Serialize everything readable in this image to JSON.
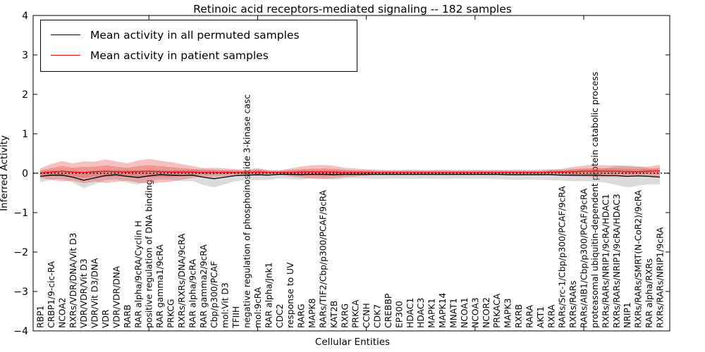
{
  "title": "Retinoic acid receptors-mediated signaling -- 182 samples",
  "legend": {
    "items": [
      {
        "label": "Mean activity in all permuted samples",
        "color": "#000000"
      },
      {
        "label": "Mean activity in patient samples",
        "color": "#ee1111"
      }
    ]
  },
  "chart_data": {
    "type": "line",
    "title": "Retinoic acid receptors-mediated signaling -- 182 samples",
    "xlabel": "Cellular Entities",
    "ylabel": "Inferred Activity",
    "ylim": [
      -4,
      4
    ],
    "yticks": [
      4,
      3,
      2,
      1,
      0,
      -1,
      -2,
      -3,
      -4
    ],
    "yticklabels": [
      "4",
      "3",
      "2",
      "1",
      "0",
      "−1",
      "−2",
      "−3",
      "−4"
    ],
    "grid": false,
    "legend_position": "upper left",
    "zero_line": {
      "style": "dotted",
      "color": "#000000",
      "y": 0
    },
    "categories": [
      "RBP1",
      "CRBP1/9-cic-RA",
      "NCOA2",
      "RXRs/VDR/DNA/Vit D3",
      "VDR/VDR/Vit D3",
      "VDR/Vit D3/DNA",
      "VDR",
      "VDR/VDR/DNA",
      "RARB",
      "RAR alpha/9cRA/Cyclin H",
      "positive regulation of DNA binding",
      "RAR gamma1/9cRA",
      "PRKCG",
      "RXRs/RXRs/DNA/9cRA",
      "RAR alpha/9cRA",
      "RAR gamma2/9cRA",
      "Cbp/p300/PCAF",
      "mol:Vit D3",
      "TFIIH",
      "negative regulation of phosphoinositide 3-kinase casc",
      "mol:9cRA",
      "RAR alpha/Jnk1",
      "CDC2",
      "response to UV",
      "RARG",
      "MAPK8",
      "RARs/TIF2/Cbp/p300/PCAF/9cRA",
      "KAT2B",
      "RXRG",
      "PRKCA",
      "CCNH",
      "CDK7",
      "CREBBP",
      "EP300",
      "HDAC1",
      "HDAC3",
      "MAPK1",
      "MAPK14",
      "MNAT1",
      "NCOA1",
      "NCOA3",
      "NCOR2",
      "PRKACA",
      "MAPK3",
      "RXRB",
      "RARA",
      "AKT1",
      "RXRA",
      "RARs/Src-1/Cbp/p300/PCAF/9cRA",
      "RXRs/RARs",
      "RARs/AIB1/Cbp/p300/PCAF/9cRA",
      "proteasomal ubiquitin-dependent protein catabolic process",
      "RXRs/RARs/NRIP1/9cRA/HDAC1",
      "RXRs/RARs/NRIP1/9cRA/HDAC3",
      "NRIP1",
      "RXRs/RARs/SMRT(N-CoR2)/9cRA",
      "RAR alpha/RXRs",
      "RXRs/RARs/NRIP1/9cRA"
    ],
    "series": [
      {
        "name": "Mean activity in all permuted samples",
        "color": "#000000",
        "band_color": "rgba(175,175,175,0.45)",
        "values": [
          -0.08,
          -0.05,
          -0.05,
          -0.1,
          -0.18,
          -0.12,
          -0.06,
          -0.04,
          -0.08,
          -0.11,
          -0.07,
          -0.04,
          -0.05,
          -0.06,
          -0.05,
          -0.1,
          -0.14,
          -0.1,
          -0.06,
          -0.05,
          -0.04,
          -0.05,
          -0.03,
          -0.03,
          -0.04,
          -0.03,
          -0.03,
          -0.04,
          -0.03,
          -0.03,
          -0.03,
          -0.03,
          -0.03,
          -0.03,
          -0.03,
          -0.03,
          -0.03,
          -0.03,
          -0.03,
          -0.03,
          -0.03,
          -0.03,
          -0.03,
          -0.04,
          -0.04,
          -0.04,
          -0.04,
          -0.04,
          -0.05,
          -0.05,
          -0.05,
          -0.05,
          -0.06,
          -0.06,
          -0.08,
          -0.07,
          -0.08,
          -0.1
        ],
        "band": [
          0.15,
          0.12,
          0.1,
          0.14,
          0.2,
          0.16,
          0.12,
          0.12,
          0.16,
          0.18,
          0.14,
          0.12,
          0.12,
          0.14,
          0.15,
          0.2,
          0.22,
          0.18,
          0.14,
          0.12,
          0.14,
          0.12,
          0.1,
          0.12,
          0.12,
          0.1,
          0.11,
          0.12,
          0.11,
          0.1,
          0.11,
          0.12,
          0.11,
          0.11,
          0.12,
          0.11,
          0.11,
          0.12,
          0.11,
          0.11,
          0.12,
          0.11,
          0.12,
          0.12,
          0.13,
          0.12,
          0.13,
          0.14,
          0.14,
          0.15,
          0.15,
          0.16,
          0.18,
          0.24,
          0.28,
          0.25,
          0.2,
          0.18
        ]
      },
      {
        "name": "Mean activity in patient samples",
        "color": "#ee1111",
        "band_color": "rgba(230,60,60,0.32)",
        "values": [
          0.0,
          0.03,
          0.05,
          0.03,
          0.02,
          0.04,
          0.05,
          0.04,
          0.03,
          0.04,
          0.05,
          0.04,
          0.03,
          0.03,
          0.03,
          0.02,
          0.02,
          0.02,
          0.02,
          0.02,
          0.03,
          0.02,
          0.02,
          0.02,
          0.03,
          0.03,
          0.03,
          0.03,
          0.02,
          0.02,
          0.02,
          0.02,
          0.02,
          0.02,
          0.02,
          0.02,
          0.02,
          0.02,
          0.02,
          0.02,
          0.02,
          0.02,
          0.02,
          0.02,
          0.02,
          0.02,
          0.02,
          0.03,
          0.03,
          0.04,
          0.05,
          0.05,
          0.05,
          0.05,
          0.04,
          0.04,
          0.05,
          0.06
        ],
        "band": [
          0.12,
          0.2,
          0.26,
          0.22,
          0.28,
          0.25,
          0.3,
          0.26,
          0.22,
          0.28,
          0.31,
          0.28,
          0.25,
          0.2,
          0.15,
          0.11,
          0.12,
          0.1,
          0.08,
          0.07,
          0.1,
          0.06,
          0.05,
          0.1,
          0.14,
          0.17,
          0.18,
          0.16,
          0.12,
          0.1,
          0.08,
          0.05,
          0.05,
          0.05,
          0.05,
          0.05,
          0.05,
          0.05,
          0.05,
          0.05,
          0.05,
          0.05,
          0.05,
          0.05,
          0.05,
          0.05,
          0.05,
          0.06,
          0.08,
          0.12,
          0.14,
          0.15,
          0.15,
          0.15,
          0.13,
          0.12,
          0.12,
          0.15
        ]
      }
    ]
  }
}
